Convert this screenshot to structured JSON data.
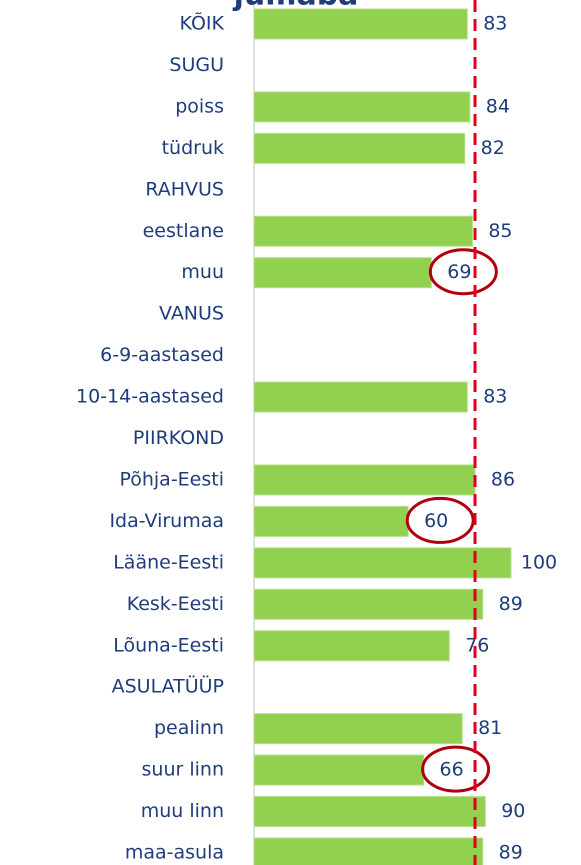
{
  "chart_data": {
    "type": "bar",
    "orientation": "horizontal",
    "title": "jumaba",
    "categories": [
      "KÕIK",
      "SUGU",
      "poiss",
      "tüdruk",
      "RAHVUS",
      "eestlane",
      "muu",
      "VANUS",
      "6-9-aastased",
      "10-14-aastased",
      "PIIRKOND",
      "Põhja-Eesti",
      "Ida-Virumaa",
      "Lääne-Eesti",
      "Kesk-Eesti",
      "Lõuna-Eesti",
      "ASULATÜÜP",
      "pealinn",
      "suur linn",
      "muu linn",
      "maa-asula"
    ],
    "values": [
      83,
      null,
      84,
      82,
      null,
      85,
      69,
      null,
      null,
      83,
      null,
      86,
      60,
      100,
      89,
      76,
      null,
      81,
      66,
      90,
      89
    ],
    "color": "#92d050",
    "xlim": [
      0,
      100
    ],
    "reference_line": 86,
    "reference_color": "#e0001b",
    "highlighted": [
      6,
      12,
      18
    ],
    "highlight_color": "#b00010"
  }
}
